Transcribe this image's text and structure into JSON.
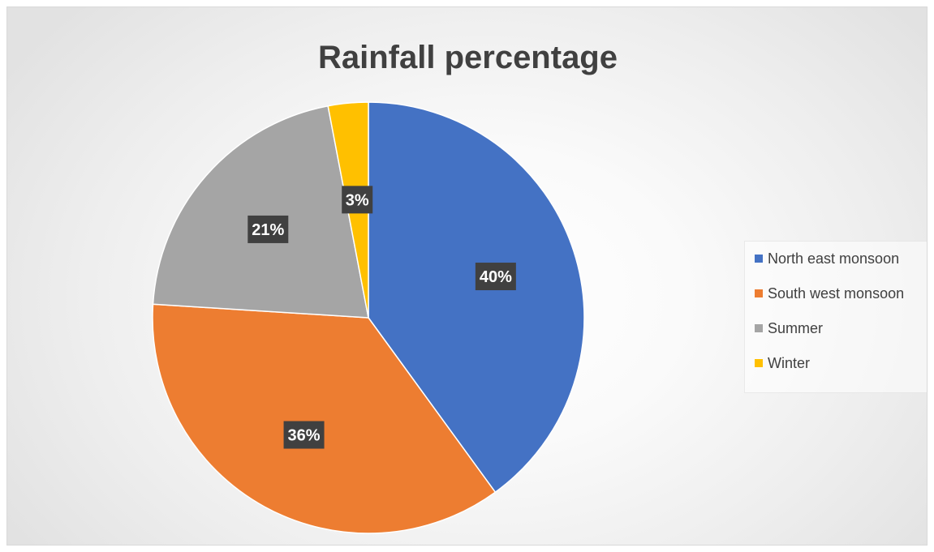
{
  "chart_data": {
    "type": "pie",
    "title": "Rainfall percentage",
    "categories": [
      "North east monsoon",
      "South west monsoon",
      "Summer",
      "Winter"
    ],
    "values": [
      40,
      36,
      21,
      3
    ],
    "data_labels": [
      "40%",
      "36%",
      "21%",
      "3%"
    ],
    "colors": [
      "#4472c4",
      "#ed7d31",
      "#a5a5a5",
      "#ffc000"
    ],
    "legend_position": "right",
    "start_angle_deg": 0,
    "direction": "clockwise"
  }
}
